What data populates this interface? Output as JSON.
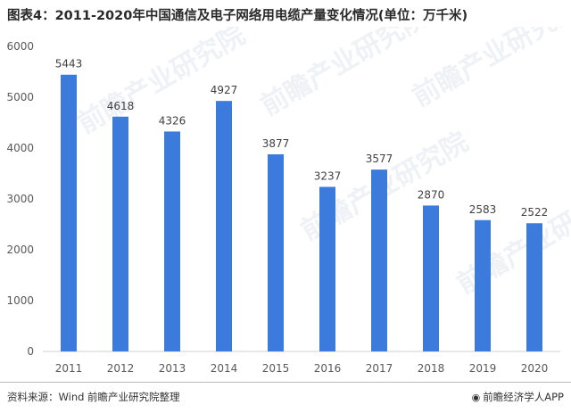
{
  "title": "图表4：2011-2020年中国通信及电子网络用电缆产量变化情况(单位：万千米)",
  "source": "资料来源：Wind 前瞻产业研究院整理",
  "brand": "前瞻经济学人APP",
  "brand_icon": "logo-icon",
  "watermark": "前瞻产业研究院",
  "colors": {
    "bar": "#3c7bdc"
  },
  "chart_data": {
    "type": "bar",
    "categories": [
      "2011",
      "2012",
      "2013",
      "2014",
      "2015",
      "2016",
      "2017",
      "2018",
      "2019",
      "2020"
    ],
    "values": [
      5443,
      4618,
      4326,
      4927,
      3877,
      3237,
      3577,
      2870,
      2583,
      2522
    ],
    "ylim": [
      0,
      6000
    ],
    "yticks": [
      0,
      1000,
      2000,
      3000,
      4000,
      5000,
      6000
    ],
    "title": "",
    "xlabel": "",
    "ylabel": "",
    "grid": false,
    "legend": "none"
  }
}
